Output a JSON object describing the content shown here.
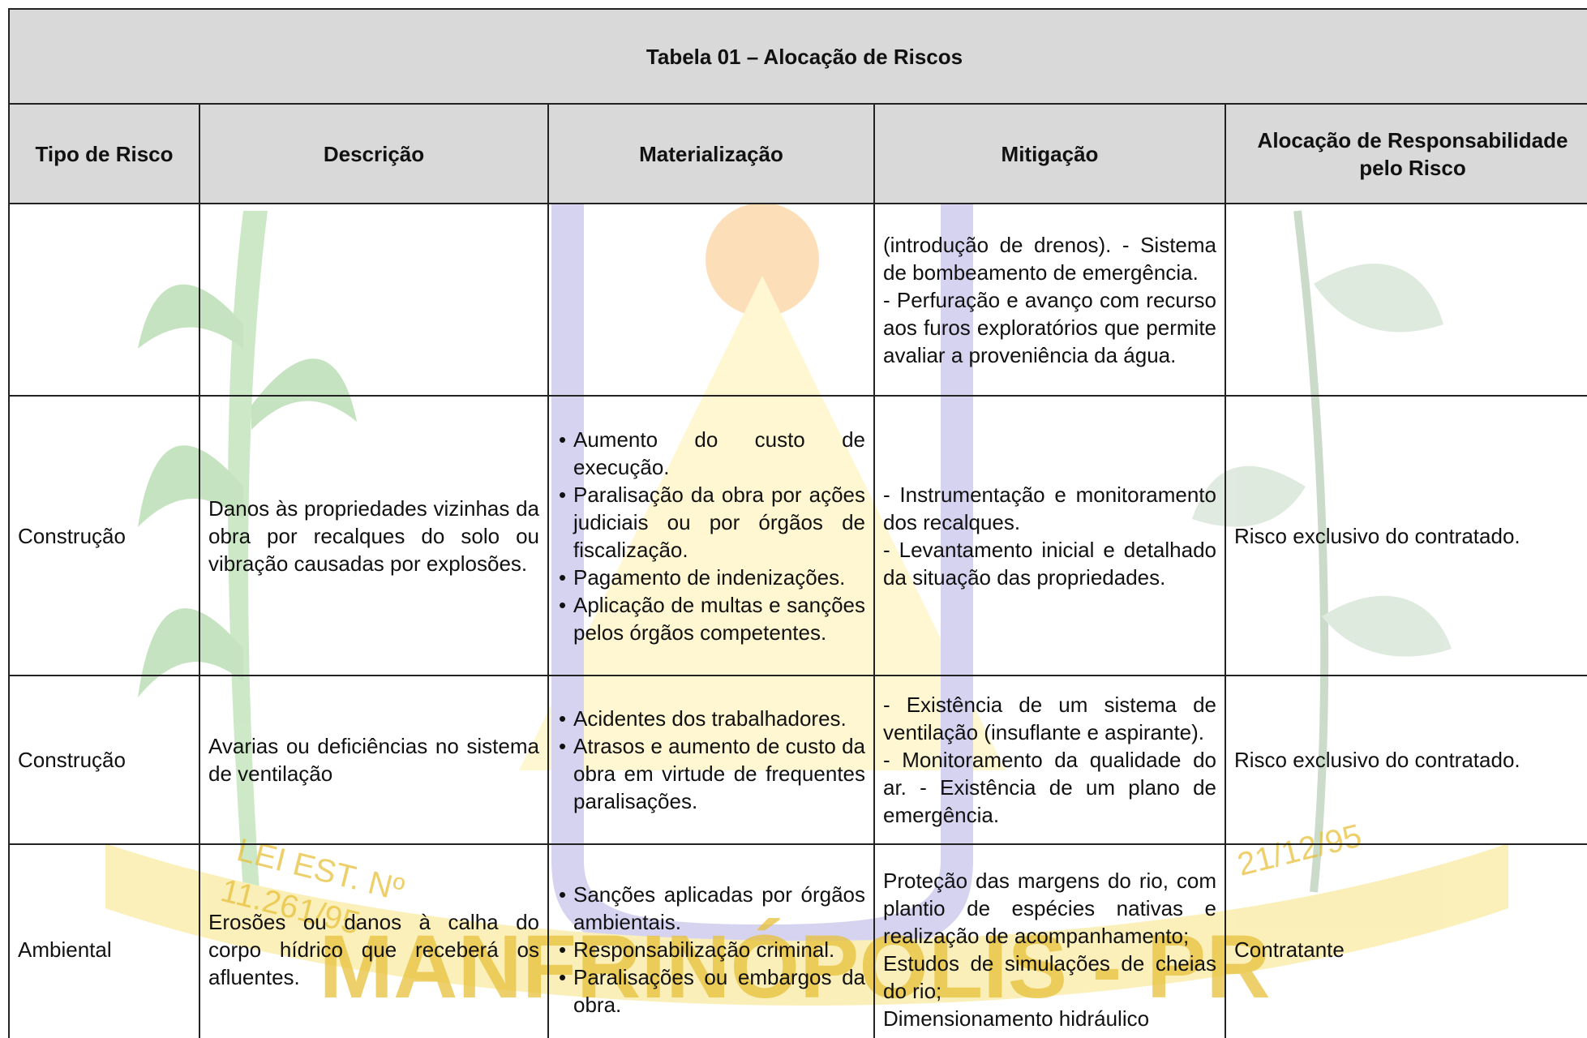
{
  "title": "Tabela 01 – Alocação de Riscos",
  "headers": [
    "Tipo de Risco",
    "Descrição",
    "Materialização",
    "Mitigação",
    "Alocação de Responsabilidade pelo Risco"
  ],
  "rows": [
    [
      null,
      null,
      null,
      {
        "paragraphs": [
          "(introdução de drenos). - Sistema de bombeamento de emergência.",
          "- Perfuração e avanço com recurso aos furos exploratórios que permite avaliar a proveniência da água."
        ]
      },
      null
    ],
    [
      "Construção",
      "Danos às propriedades vizinhas da obra por recalques do solo ou vibração causadas por explosões.",
      {
        "bullets": [
          "Aumento do custo de execução.",
          "Paralisação da obra por ações judiciais ou por órgãos de fiscalização.",
          "Pagamento de indenizações.",
          "Aplicação de multas e sanções pelos órgãos competentes."
        ]
      },
      {
        "paragraphs": [
          "- Instrumentação e monitoramento dos recalques.",
          "- Levantamento inicial e detalhado da situação das propriedades."
        ]
      },
      "Risco exclusivo do contratado."
    ],
    [
      "Construção",
      "Avarias ou deficiências no sistema de ventilação",
      {
        "bullets": [
          "Acidentes dos trabalhadores.",
          "Atrasos e aumento de custo da obra em virtude de frequentes paralisações."
        ]
      },
      {
        "paragraphs": [
          "- Existência de um sistema de ventilação (insuflante e aspirante).",
          "- Monitoramento da qualidade do ar. - Existência de um plano de emergência."
        ]
      },
      "Risco exclusivo do contratado."
    ],
    [
      "Ambiental",
      "Erosões ou danos à calha do corpo hídrico que receberá os afluentes.",
      {
        "bullets": [
          "Sanções aplicadas por órgãos ambientais.",
          "Responsabilização criminal.",
          "Paralisações ou embargos da obra."
        ]
      },
      {
        "paragraphs": [
          "Proteção das margens do rio, com plantio de espécies nativas e realização de acompanhamento;",
          "Estudos de simulações de cheias do rio;",
          "Dimensionamento hidráulico"
        ]
      },
      "Contratante"
    ]
  ],
  "watermark": {
    "law": "LEI EST. Nº",
    "law_number": "11.261/95",
    "city": "MANFRINÓPOLIS - PR",
    "date": "21/12/95"
  }
}
